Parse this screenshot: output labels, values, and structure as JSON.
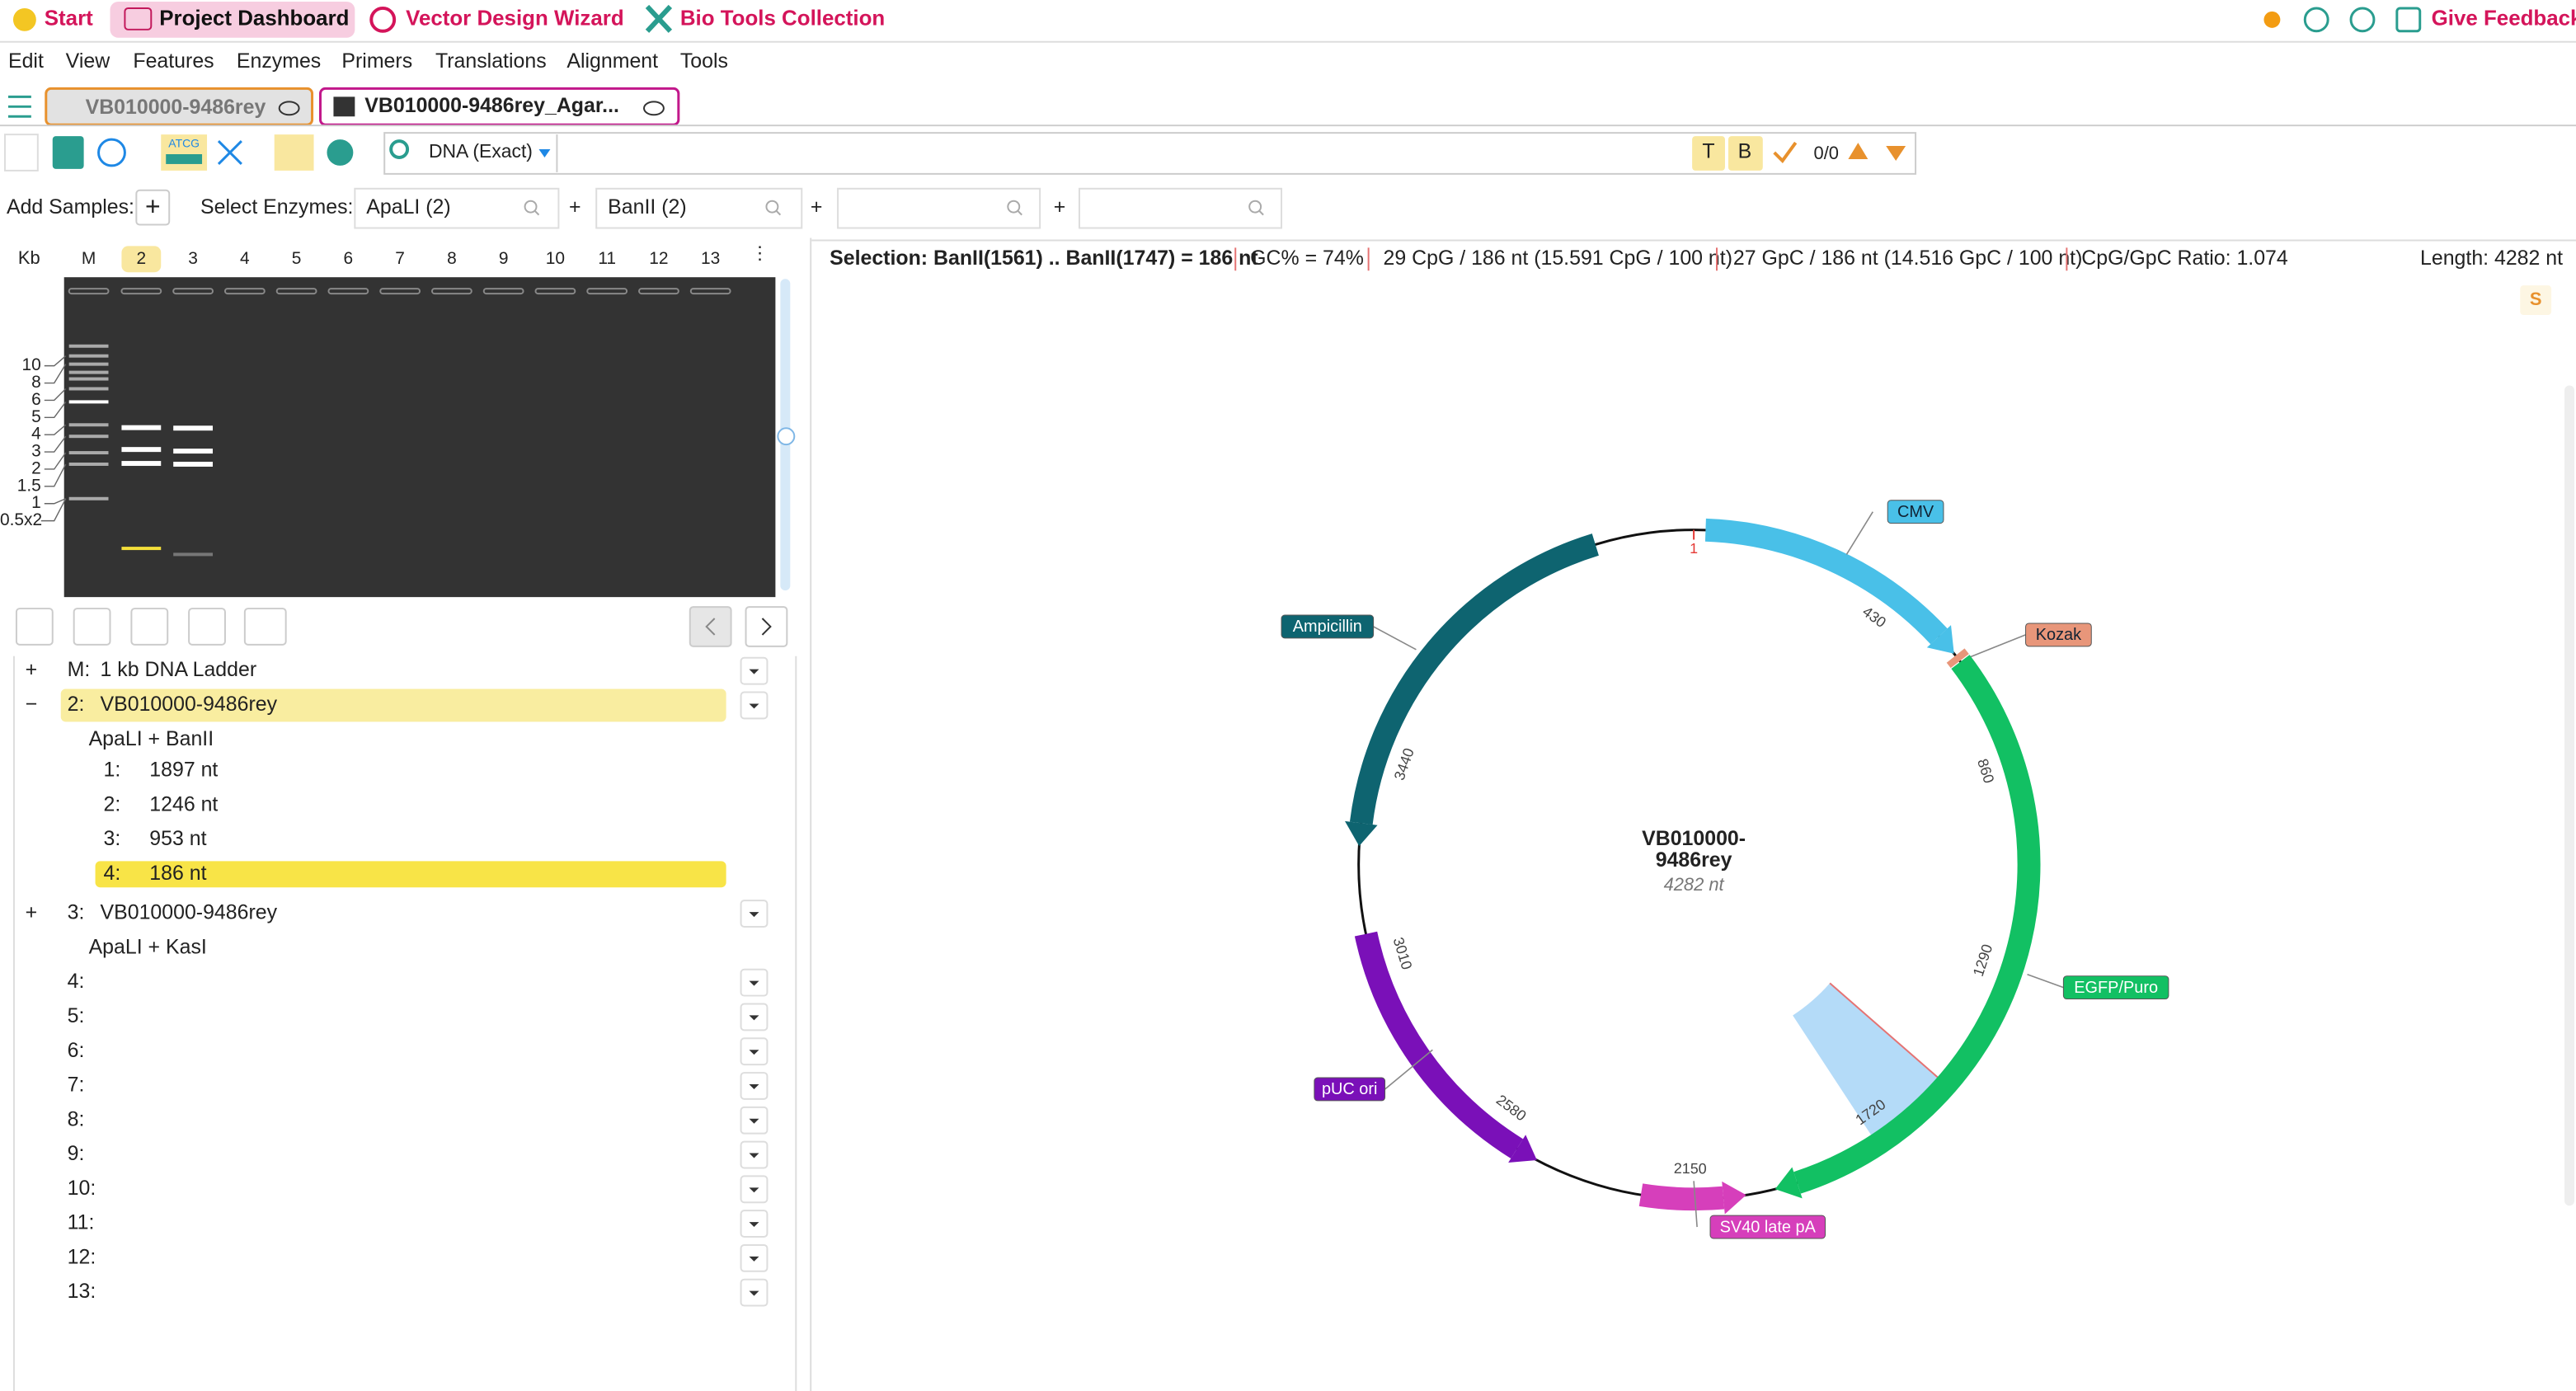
{
  "nav": {
    "start": "Start",
    "items": [
      "Project Dashboard",
      "Vector Design Wizard",
      "Bio Tools Collection"
    ],
    "feedback": "Give Feedback"
  },
  "menu": [
    "Edit",
    "View",
    "Features",
    "Enzymes",
    "Primers",
    "Translations",
    "Alignment",
    "Tools"
  ],
  "tabs": [
    "VB010000-9486rey",
    "VB010000-9486rey_Agar..."
  ],
  "toolbar": {
    "icon_text": "ATCG",
    "search_mode": "DNA (Exact)",
    "toggles": [
      "T",
      "B"
    ],
    "match_count": "0/0"
  },
  "samples_bar": {
    "add_label": "Add Samples:",
    "add_button": "+",
    "enzyme_label": "Select Enzymes:",
    "enzymes": [
      "ApaLI (2)",
      "BanII (2)"
    ],
    "separators": [
      "+",
      "+",
      "+"
    ]
  },
  "gel": {
    "kb_label": "Kb",
    "lanes": [
      "M",
      2,
      3,
      4,
      5,
      6,
      7,
      8,
      9,
      10,
      11,
      12,
      13
    ],
    "ladder_labels": [
      10,
      8,
      6,
      5,
      4,
      3,
      2,
      1.5,
      1,
      "0.5x2"
    ]
  },
  "sample_list": {
    "rows": [
      {
        "toggle": "+",
        "id": "M:",
        "name": "1 kb DNA Ladder"
      },
      {
        "toggle": "−",
        "id": "2:",
        "name": "VB010000-9486rey",
        "digest": "ApaLI + BanII",
        "fragments": [
          {
            "index": "1:",
            "size": {
              "value": 1897,
              "label": "1897 nt"
            }
          },
          {
            "index": "2:",
            "size": {
              "value": 1246,
              "label": "1246 nt"
            }
          },
          {
            "index": "3:",
            "size": {
              "value": 953,
              "label": "953 nt"
            }
          },
          {
            "index": "4:",
            "size": {
              "value": 186,
              "label": "186 nt"
            }
          }
        ]
      },
      {
        "toggle": "+",
        "id": "3:",
        "name": "VB010000-9486rey",
        "digest": "ApaLI + KasI"
      },
      {
        "id": "4:"
      },
      {
        "id": "5:"
      },
      {
        "id": "6:"
      },
      {
        "id": "7:"
      },
      {
        "id": "8:"
      },
      {
        "id": "9:"
      },
      {
        "id": "10:"
      },
      {
        "id": "11:"
      },
      {
        "id": "12:"
      },
      {
        "id": "13:"
      }
    ]
  },
  "info_bar": {
    "selection": "Selection: BanII(1561) .. BanII(1747) = 186 nt",
    "gc": "GC% = 74%",
    "cpg": "29 CpG / 186 nt (15.591 CpG / 100 nt)",
    "gpc": "27 GpC / 186 nt (14.516 GpC / 100 nt)",
    "ratio": "CpG/GpC Ratio: 1.074",
    "length": "Length: 4282 nt",
    "side_button": "S"
  },
  "map": {
    "name_lines": [
      "VB010000-",
      "9486rey"
    ],
    "size": {
      "value": 4282,
      "label": "4282 nt"
    },
    "ticks": [
      1,
      430,
      860,
      1290,
      1720,
      2150,
      2580,
      3010,
      3440
    ],
    "selection": {
      "start": 1561,
      "end": 1747
    },
    "features": [
      {
        "label": "CMV",
        "start": 25,
        "end": 607,
        "direction": "forward",
        "color": "#49c0e8"
      },
      {
        "label": "Kozak",
        "start": 612,
        "end": 626,
        "direction": "forward",
        "color": "#e8967a"
      },
      {
        "label": "EGFP/Puro",
        "start": 628,
        "end": 1975,
        "direction": "forward",
        "color": "#12c063"
      },
      {
        "label": "SV40 late pA",
        "start": 2035,
        "end": 2250,
        "direction": "reverse",
        "color": "#d63fbb"
      },
      {
        "label": "pUC ori",
        "start": 2474,
        "end": 3070,
        "direction": "reverse",
        "color": "#7a10b8"
      },
      {
        "label": "Ampicillin",
        "start": 3250,
        "end": 4080,
        "direction": "reverse",
        "color": "#0e6470"
      }
    ]
  }
}
